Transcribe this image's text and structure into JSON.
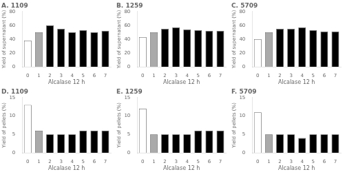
{
  "chart_data": [
    {
      "type": "bar",
      "title": "A. 1109",
      "xlabel": "Alcalase 12 h",
      "ylabel": "Yield of supernatant (%)",
      "categories": [
        "0",
        "1",
        "2",
        "3",
        "4",
        "5",
        "6",
        "7"
      ],
      "values": [
        38,
        50,
        60,
        55,
        50,
        53,
        50,
        52
      ],
      "colors": [
        "white",
        "#aaaaaa",
        "black",
        "black",
        "black",
        "black",
        "black",
        "black"
      ],
      "ylim": [
        0,
        80
      ],
      "yticks": [
        0,
        20,
        40,
        60,
        80
      ],
      "grid": false
    },
    {
      "type": "bar",
      "title": "B. 1259",
      "xlabel": "Alcalase 12 h",
      "ylabel": "Yield of supernatant (%)",
      "categories": [
        "0",
        "1",
        "2",
        "3",
        "4",
        "5",
        "6",
        "7"
      ],
      "values": [
        43,
        50,
        55,
        57,
        54,
        53,
        52,
        52
      ],
      "colors": [
        "white",
        "#aaaaaa",
        "black",
        "black",
        "black",
        "black",
        "black",
        "black"
      ],
      "ylim": [
        0,
        80
      ],
      "yticks": [
        0,
        20,
        40,
        60,
        80
      ],
      "grid": false
    },
    {
      "type": "bar",
      "title": "C. 5709",
      "xlabel": "Alcalase 12 h",
      "ylabel": "Yield of supernatant (%)",
      "categories": [
        "0",
        "1",
        "2",
        "3",
        "4",
        "5",
        "6",
        "7"
      ],
      "values": [
        40,
        50,
        55,
        55,
        57,
        53,
        51,
        51
      ],
      "colors": [
        "white",
        "#aaaaaa",
        "black",
        "black",
        "black",
        "black",
        "black",
        "black"
      ],
      "ylim": [
        0,
        80
      ],
      "yticks": [
        0,
        20,
        40,
        60,
        80
      ],
      "grid": false
    },
    {
      "type": "bar",
      "title": "D. 1109",
      "xlabel": "Alcalase 12 h",
      "ylabel": "Yield of pellets (%)",
      "categories": [
        "0",
        "1",
        "2",
        "3",
        "4",
        "5",
        "6",
        "7"
      ],
      "values": [
        13,
        6,
        5,
        5,
        5,
        6,
        6,
        6
      ],
      "colors": [
        "white",
        "#aaaaaa",
        "black",
        "black",
        "black",
        "black",
        "black",
        "black"
      ],
      "ylim": [
        0,
        15
      ],
      "yticks": [
        0,
        5,
        10,
        15
      ],
      "grid": false
    },
    {
      "type": "bar",
      "title": "E. 1259",
      "xlabel": "Alcalase 12 h",
      "ylabel": "Yield of pellets (%)",
      "categories": [
        "0",
        "1",
        "2",
        "3",
        "4",
        "5",
        "6",
        "7"
      ],
      "values": [
        12,
        5,
        5,
        5,
        5,
        6,
        6,
        6
      ],
      "colors": [
        "white",
        "#aaaaaa",
        "black",
        "black",
        "black",
        "black",
        "black",
        "black"
      ],
      "ylim": [
        0,
        15
      ],
      "yticks": [
        0,
        5,
        10,
        15
      ],
      "grid": false
    },
    {
      "type": "bar",
      "title": "F. 5709",
      "xlabel": "Alcalase 12 h",
      "ylabel": "Yield of pellets (%)",
      "categories": [
        "0",
        "1",
        "2",
        "3",
        "4",
        "5",
        "6",
        "7"
      ],
      "values": [
        11,
        5,
        5,
        5,
        4,
        5,
        5,
        5
      ],
      "colors": [
        "white",
        "#aaaaaa",
        "black",
        "black",
        "black",
        "black",
        "black",
        "black"
      ],
      "ylim": [
        0,
        15
      ],
      "yticks": [
        0,
        5,
        10,
        15
      ],
      "grid": false
    }
  ]
}
